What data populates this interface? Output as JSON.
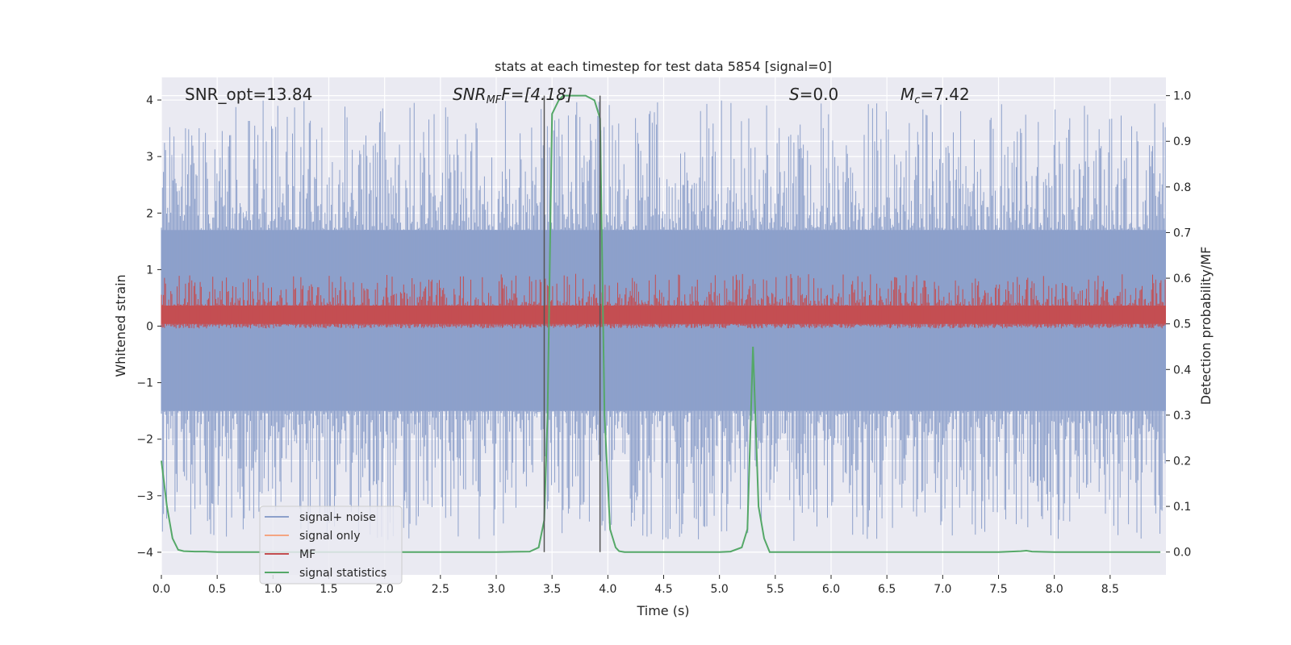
{
  "chart_data": {
    "type": "line",
    "title": "stats at each timestep for test data 5854 [signal=0]",
    "xlabel": "Time (s)",
    "ylabel": "Whitened strain",
    "y2label": "Detection probability/MF",
    "xlim": [
      0.0,
      9.0
    ],
    "ylim": [
      -4.4,
      4.4
    ],
    "y2lim": [
      -0.05,
      1.04
    ],
    "x_ticks": [
      0.0,
      0.5,
      1.0,
      1.5,
      2.0,
      2.5,
      3.0,
      3.5,
      4.0,
      4.5,
      5.0,
      5.5,
      6.0,
      6.5,
      7.0,
      7.5,
      8.0,
      8.5
    ],
    "x_tick_labels": [
      "0.0",
      "0.5",
      "1.0",
      "1.5",
      "2.0",
      "2.5",
      "3.0",
      "3.5",
      "4.0",
      "4.5",
      "5.0",
      "5.5",
      "6.0",
      "6.5",
      "7.0",
      "7.5",
      "8.0",
      "8.5"
    ],
    "y_ticks": [
      -4,
      -3,
      -2,
      -1,
      0,
      1,
      2,
      3,
      4
    ],
    "y_tick_labels": [
      "−4",
      "−3",
      "−2",
      "−1",
      "0",
      "1",
      "2",
      "3",
      "4"
    ],
    "y2_ticks": [
      0.0,
      0.1,
      0.2,
      0.3,
      0.4,
      0.5,
      0.6,
      0.7,
      0.8,
      0.9,
      1.0
    ],
    "y2_tick_labels": [
      "0.0",
      "0.1",
      "0.2",
      "0.3",
      "0.4",
      "0.5",
      "0.6",
      "0.7",
      "0.8",
      "0.9",
      "1.0"
    ],
    "grid": true,
    "legend_position": "lower-left",
    "legend": [
      {
        "label": "signal+ noise",
        "color": "#8da0cb"
      },
      {
        "label": "signal only",
        "color": "#f4a582"
      },
      {
        "label": "MF",
        "color": "#c44e52"
      },
      {
        "label": "signal statistics",
        "color": "#55a868"
      }
    ],
    "annotations": {
      "snr_opt": "SNR_opt=13.84",
      "snr_mf_main": "SNR",
      "snr_mf_sub": "MF",
      "snr_mf_rest": "F=[4.18]",
      "s_main": "S",
      "s_rest": "=0.0",
      "mc_main": "M",
      "mc_sub": "c",
      "mc_rest": "=7.42"
    },
    "vertical_lines": [
      3.43,
      3.93
    ],
    "series": [
      {
        "name": "signal+ noise",
        "axis": "left",
        "color": "#8da0cb",
        "style": "dense noise band",
        "core_range": [
          -1.5,
          1.7
        ],
        "spike_range": [
          -3.8,
          4.0
        ]
      },
      {
        "name": "MF",
        "axis": "right",
        "color": "#c44e52",
        "style": "dense noise band",
        "core_range": [
          0.5,
          0.54
        ],
        "spike_range": [
          0.49,
          0.61
        ]
      },
      {
        "name": "signal statistics",
        "axis": "right",
        "color": "#55a868",
        "x": [
          0.0,
          0.05,
          0.1,
          0.15,
          0.2,
          0.3,
          0.4,
          0.5,
          1.0,
          1.5,
          2.0,
          2.5,
          3.0,
          3.3,
          3.38,
          3.43,
          3.46,
          3.5,
          3.56,
          3.6,
          3.7,
          3.8,
          3.88,
          3.93,
          3.97,
          4.02,
          4.07,
          4.1,
          4.15,
          4.2,
          4.5,
          5.0,
          5.1,
          5.2,
          5.25,
          5.3,
          5.35,
          5.4,
          5.45,
          5.5,
          6.0,
          6.5,
          7.0,
          7.5,
          7.7,
          7.75,
          7.8,
          8.0,
          8.5,
          8.95
        ],
        "values": [
          0.2,
          0.1,
          0.03,
          0.005,
          0.002,
          0.001,
          0.001,
          0.0,
          0.0,
          0.0,
          0.0,
          0.0,
          0.0,
          0.001,
          0.01,
          0.07,
          0.3,
          0.96,
          0.99,
          1.0,
          1.0,
          1.0,
          0.99,
          0.95,
          0.3,
          0.05,
          0.01,
          0.002,
          0.0,
          0.0,
          0.0,
          0.0,
          0.001,
          0.01,
          0.05,
          0.45,
          0.1,
          0.03,
          0.0,
          0.0,
          0.0,
          0.0,
          0.0,
          0.0,
          0.002,
          0.003,
          0.001,
          0.0,
          0.0,
          0.0
        ]
      }
    ]
  }
}
